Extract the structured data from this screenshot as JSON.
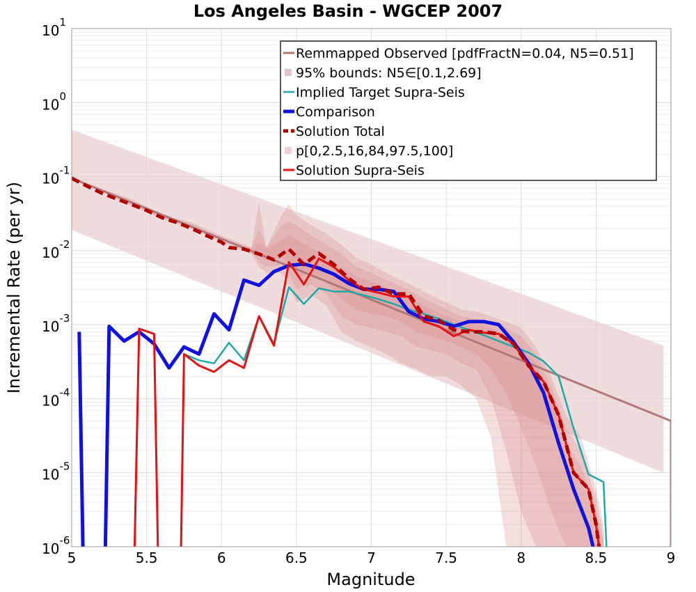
{
  "chart_data": {
    "type": "line",
    "title": "Los Angeles Basin - WGCEP 2007",
    "xlabel": "Magnitude",
    "ylabel": "Incremental Rate (per yr)",
    "xlim": [
      5,
      9
    ],
    "ylim": [
      1e-06,
      10
    ],
    "yscale": "log",
    "x_ticks": [
      "5",
      "5.5",
      "6",
      "6.5",
      "7",
      "7.5",
      "8",
      "8.5",
      "9"
    ],
    "x_tick_values": [
      5,
      5.5,
      6,
      6.5,
      7,
      7.5,
      8,
      8.5,
      9
    ],
    "y_tick_exponents": [
      1,
      0,
      -1,
      -2,
      -3,
      -4,
      -5,
      -6
    ],
    "y_tick_base": "10",
    "grid": true,
    "legend_position": "top-right",
    "colors": {
      "remapped": "#b07878",
      "bounds95": "#e9d2d2",
      "implied": "#20a8a8",
      "comparison": "#1010e0",
      "total": "#b00000",
      "percentile": "#d88888",
      "supra": "#e81010"
    },
    "series": [
      {
        "name": "Remmapped Observed [pdfFractN=0.04, N5=0.51]",
        "key": "remapped",
        "style": "line",
        "width": 3,
        "x": [
          5.0,
          9.0,
          9.0
        ],
        "y": [
          0.095,
          5e-05,
          1e-06
        ]
      },
      {
        "name": "95% bounds: N5∈[0.1,2.69]",
        "key": "bounds95",
        "style": "band",
        "x": [
          5.0,
          8.95
        ],
        "upper": [
          0.43,
          0.00052
        ],
        "lower": [
          0.019,
          1e-05
        ]
      },
      {
        "name": "Implied Target Supra-Seis",
        "key": "implied",
        "style": "line",
        "width": 2.5,
        "x": [
          5.75,
          5.85,
          5.95,
          6.05,
          6.15,
          6.25,
          6.35,
          6.45,
          6.55,
          6.65,
          6.75,
          6.85,
          6.95,
          7.05,
          7.15,
          7.25,
          7.35,
          7.45,
          7.55,
          7.65,
          7.75,
          7.85,
          7.95,
          8.05,
          8.15,
          8.25,
          8.35,
          8.45,
          8.55,
          8.57
        ],
        "y": [
          0.0004,
          0.00033,
          0.0003,
          0.00057,
          0.00033,
          0.0013,
          0.00055,
          0.0032,
          0.0019,
          0.0031,
          0.0028,
          0.0028,
          0.0025,
          0.0022,
          0.0019,
          0.0016,
          0.0014,
          0.0012,
          0.001,
          0.00085,
          0.00072,
          0.0006,
          0.0005,
          0.00042,
          0.00032,
          0.0002,
          4e-05,
          9.5e-06,
          7.5e-06,
          1e-06
        ]
      },
      {
        "name": "Comparison",
        "key": "comparison",
        "style": "line",
        "width": 5,
        "segments": [
          {
            "x": [
              5.05,
              5.075
            ],
            "y": [
              0.0008,
              1e-06
            ]
          },
          {
            "x": [
              5.225,
              5.25,
              5.35,
              5.45,
              5.55,
              5.65,
              5.75,
              5.85,
              5.95,
              6.05,
              6.15,
              6.25,
              6.35,
              6.45,
              6.55,
              6.65,
              6.75,
              6.85,
              6.95,
              7.05,
              7.15,
              7.25,
              7.35,
              7.45,
              7.55,
              7.65,
              7.75,
              7.85,
              7.95,
              8.05,
              8.15,
              8.25,
              8.35,
              8.45,
              8.48
            ],
            "y": [
              1e-06,
              0.00095,
              0.0006,
              0.0008,
              0.00055,
              0.00026,
              0.0005,
              0.0004,
              0.0014,
              0.00085,
              0.004,
              0.0034,
              0.0052,
              0.0063,
              0.0066,
              0.0058,
              0.0048,
              0.0036,
              0.003,
              0.003,
              0.0028,
              0.0015,
              0.0012,
              0.0011,
              0.00095,
              0.0011,
              0.0011,
              0.001,
              0.00058,
              0.0003,
              0.00012,
              2.5e-05,
              6e-06,
              1.8e-06,
              1e-06
            ]
          }
        ]
      },
      {
        "name": "Solution Total",
        "key": "total",
        "style": "dashed",
        "width": 5,
        "x": [
          5.0,
          5.1,
          5.2,
          5.3,
          5.4,
          5.5,
          5.6,
          5.7,
          5.8,
          5.9,
          6.0,
          6.05,
          6.15,
          6.25,
          6.35,
          6.45,
          6.55,
          6.65,
          6.75,
          6.85,
          6.95,
          7.05,
          7.15,
          7.25,
          7.35,
          7.45,
          7.55,
          7.65,
          7.75,
          7.85,
          7.95,
          8.05,
          8.15,
          8.25,
          8.35,
          8.45,
          8.5,
          8.52
        ],
        "y": [
          0.095,
          0.075,
          0.06,
          0.05,
          0.042,
          0.035,
          0.028,
          0.024,
          0.02,
          0.016,
          0.013,
          0.011,
          0.0105,
          0.009,
          0.0075,
          0.0105,
          0.0065,
          0.0092,
          0.0065,
          0.0042,
          0.003,
          0.0032,
          0.0026,
          0.0026,
          0.0013,
          0.00115,
          0.00085,
          0.0008,
          0.0008,
          0.00075,
          0.00055,
          0.00028,
          0.00017,
          6e-05,
          1e-05,
          6e-06,
          2e-06,
          1e-06
        ]
      },
      {
        "name": "p[0,2.5,16,84,97.5,100]",
        "key": "percentile",
        "style": "bands",
        "x": [
          5.0,
          5.2,
          5.4,
          5.6,
          5.8,
          6.0,
          6.2,
          6.25,
          6.3,
          6.4,
          6.45,
          6.5,
          6.6,
          6.7,
          6.8,
          6.9,
          7.0,
          7.1,
          7.2,
          7.3,
          7.4,
          7.5,
          7.6,
          7.7,
          7.8,
          7.9,
          8.0,
          8.1,
          8.2,
          8.3,
          8.4,
          8.5,
          8.55
        ],
        "bands": [
          {
            "upper": [
              0.097,
              0.068,
              0.05,
              0.031,
              0.024,
              0.016,
              0.011,
              0.045,
              0.011,
              0.03,
              0.042,
              0.03,
              0.022,
              0.017,
              0.012,
              0.008,
              0.0065,
              0.005,
              0.004,
              0.0032,
              0.0025,
              0.002,
              0.0016,
              0.0015,
              0.0013,
              0.0011,
              0.0009,
              0.0005,
              0.0002,
              6e-05,
              3e-05,
              6e-06,
              2e-06
            ],
            "lower": [
              0.092,
              0.062,
              0.04,
              0.027,
              0.02,
              0.013,
              0.009,
              0.006,
              0.005,
              0.005,
              0.0035,
              0.002,
              0.0025,
              0.0018,
              0.0008,
              0.0006,
              0.0005,
              0.0004,
              0.0003,
              0.00025,
              0.0002,
              0.0002,
              0.00015,
              0.0001,
              3e-05,
              1e-06,
              1e-06,
              1e-06,
              1e-06,
              1e-06,
              1e-06,
              1e-06,
              1e-06
            ]
          },
          {
            "upper": [
              0.096,
              0.066,
              0.047,
              0.03,
              0.023,
              0.015,
              0.011,
              0.02,
              0.011,
              0.022,
              0.025,
              0.022,
              0.016,
              0.012,
              0.009,
              0.006,
              0.005,
              0.004,
              0.0033,
              0.0026,
              0.002,
              0.0016,
              0.0013,
              0.0012,
              0.0011,
              0.0009,
              0.0007,
              0.0004,
              0.00015,
              4e-05,
              2e-05,
              4.5e-06,
              1.5e-06
            ],
            "lower": [
              0.093,
              0.063,
              0.042,
              0.028,
              0.021,
              0.014,
              0.0095,
              0.007,
              0.006,
              0.0065,
              0.005,
              0.003,
              0.0035,
              0.0026,
              0.0013,
              0.001,
              0.0009,
              0.0008,
              0.0007,
              0.0005,
              0.00045,
              0.0004,
              0.0003,
              0.00025,
              0.0001,
              2e-05,
              3e-06,
              1e-06,
              1e-06,
              1e-06,
              1e-06,
              1e-06,
              1e-06
            ]
          },
          {
            "upper": [
              0.095,
              0.065,
              0.045,
              0.029,
              0.022,
              0.0145,
              0.0105,
              0.013,
              0.0105,
              0.014,
              0.016,
              0.014,
              0.011,
              0.008,
              0.006,
              0.0045,
              0.0038,
              0.0032,
              0.0026,
              0.002,
              0.0016,
              0.0013,
              0.0011,
              0.001,
              0.0009,
              0.0007,
              0.0005,
              0.0003,
              0.0001,
              2.5e-05,
              1.2e-05,
              3e-06,
              1.2e-06
            ],
            "lower": [
              0.094,
              0.064,
              0.043,
              0.0285,
              0.0215,
              0.0142,
              0.01,
              0.0085,
              0.0075,
              0.008,
              0.0068,
              0.0045,
              0.0048,
              0.0038,
              0.0022,
              0.0016,
              0.0014,
              0.0013,
              0.0011,
              0.0008,
              0.0007,
              0.0006,
              0.0005,
              0.0004,
              0.00025,
              0.00012,
              4e-05,
              1.2e-05,
              3e-06,
              1e-06,
              1e-06,
              1e-06,
              1e-06
            ]
          }
        ]
      },
      {
        "name": "Solution Supra-Seis",
        "key": "supra",
        "style": "line",
        "width": 3,
        "segments": [
          {
            "x": [
              5.42,
              5.45,
              5.55,
              5.575
            ],
            "y": [
              1e-06,
              0.00088,
              0.00075,
              1e-06
            ]
          },
          {
            "x": [
              5.73,
              5.75,
              5.85,
              5.95,
              6.05,
              6.15,
              6.25,
              6.35,
              6.45,
              6.55,
              6.65,
              6.75,
              6.85,
              6.95,
              7.05,
              7.15,
              7.25,
              7.35,
              7.45,
              7.55,
              7.65,
              7.75,
              7.85,
              7.95,
              8.05,
              8.15,
              8.25,
              8.35,
              8.45,
              8.5,
              8.52
            ],
            "y": [
              1e-06,
              0.0004,
              0.00028,
              0.00023,
              0.00033,
              0.00026,
              0.0013,
              0.00052,
              0.007,
              0.0035,
              0.0078,
              0.006,
              0.004,
              0.003,
              0.0027,
              0.0024,
              0.0024,
              0.0011,
              0.00095,
              0.0007,
              0.00085,
              0.00078,
              0.00075,
              0.00055,
              0.00028,
              0.00017,
              6e-05,
              1e-05,
              6e-06,
              2e-06,
              1e-06
            ]
          }
        ]
      }
    ]
  }
}
